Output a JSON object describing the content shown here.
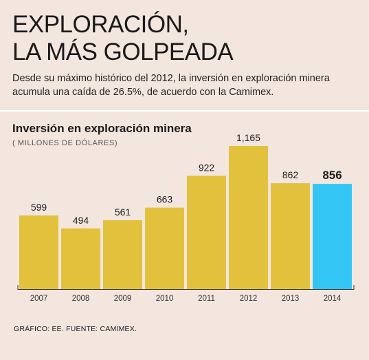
{
  "header": {
    "title_line1": "EXPLORACIÓN,",
    "title_line2": "LA MÁS GOLPEADA",
    "subtitle": "Desde su máximo histórico del 2012, la inversión en exploración minera acumula una caída de 26.5%, de acuerdo con la Camimex."
  },
  "chart_data": {
    "type": "bar",
    "title": "Inversión en exploración minera",
    "subtitle": "( MILLONES DE DÓLARES)",
    "categories": [
      "2007",
      "2008",
      "2009",
      "2010",
      "2011",
      "2012",
      "2013",
      "2014"
    ],
    "values": [
      599,
      494,
      561,
      663,
      922,
      1165,
      862,
      856
    ],
    "value_labels": [
      "599",
      "494",
      "561",
      "663",
      "922",
      "1,165",
      "862",
      "856"
    ],
    "highlight_category": "2014",
    "colors": {
      "bar": "#e2c23d",
      "highlight": "#33c6f4",
      "axis": "#3a3a3a"
    },
    "grid": false
  },
  "footer": {
    "source": "GRÁFICO: EE. FUENTE: CAMIMEX."
  }
}
